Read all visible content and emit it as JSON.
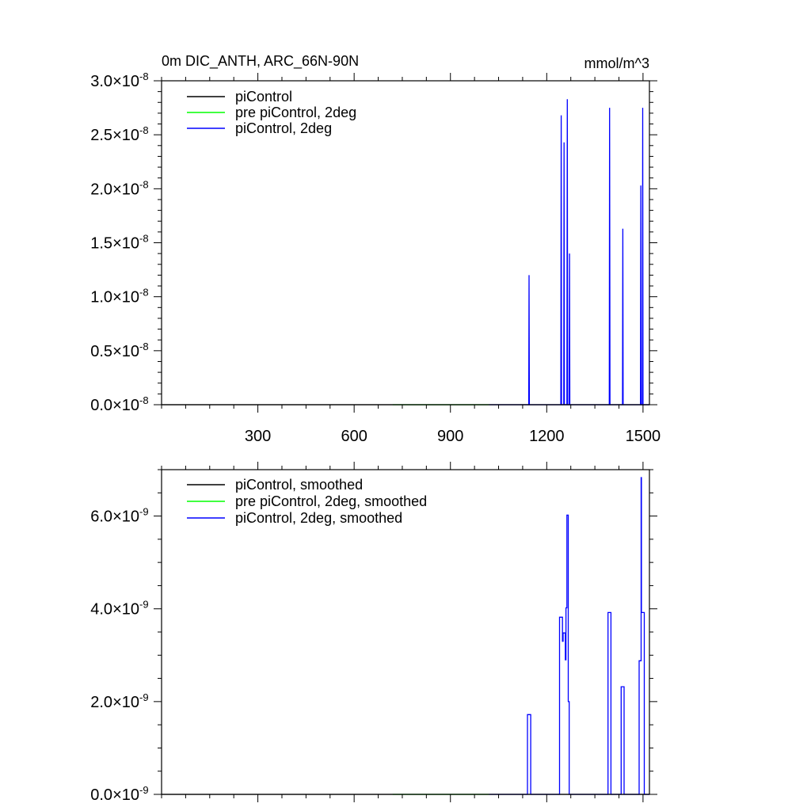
{
  "chart_data": [
    {
      "type": "line",
      "title": "0m DIC_ANTH, ARC_66N-90N",
      "units": "mmol/m^3",
      "xlim": [
        0,
        1520
      ],
      "ylim": [
        0,
        3e-08
      ],
      "x_ticks": [
        300,
        600,
        900,
        1200,
        1500
      ],
      "y_ticks": [
        {
          "value": 0,
          "mantissa": "0.0",
          "base": "×10",
          "exp": "-8"
        },
        {
          "value": 5e-09,
          "mantissa": "0.5",
          "base": "×10",
          "exp": "-8"
        },
        {
          "value": 1e-08,
          "mantissa": "1.0",
          "base": "×10",
          "exp": "-8"
        },
        {
          "value": 1.5e-08,
          "mantissa": "1.5",
          "base": "×10",
          "exp": "-8"
        },
        {
          "value": 2e-08,
          "mantissa": "2.0",
          "base": "×10",
          "exp": "-8"
        },
        {
          "value": 2.5e-08,
          "mantissa": "2.5",
          "base": "×10",
          "exp": "-8"
        },
        {
          "value": 3e-08,
          "mantissa": "3.0",
          "base": "×10",
          "exp": "-8"
        }
      ],
      "legend": [
        {
          "label": "piControl",
          "color": "#000000"
        },
        {
          "label": "pre piControl, 2deg",
          "color": "#00ff00"
        },
        {
          "label": "piControl, 2deg",
          "color": "#0000ff"
        }
      ],
      "series": [
        {
          "name": "piControl",
          "color": "#000000",
          "x": [
            0,
            1520
          ],
          "y": [
            0,
            0
          ]
        },
        {
          "name": "pre piControl, 2deg",
          "color": "#00ff00",
          "x": [
            720,
            1020
          ],
          "y": [
            0,
            0
          ]
        },
        {
          "name": "piControl, 2deg",
          "color": "#0000ff",
          "x": [
            1020,
            1144,
            1145,
            1146,
            1244,
            1245,
            1246,
            1253,
            1254,
            1255,
            1263,
            1264,
            1265,
            1270,
            1271,
            1272,
            1395,
            1396,
            1397,
            1436,
            1437,
            1438,
            1492,
            1493,
            1494,
            1498,
            1499,
            1500,
            1520
          ],
          "y": [
            0,
            0,
            1.2e-08,
            0,
            0,
            2.68e-08,
            0,
            0,
            2.43e-08,
            0,
            0,
            2.83e-08,
            0,
            0,
            1.4e-08,
            0,
            0,
            2.75e-08,
            0,
            0,
            1.63e-08,
            0,
            0,
            2.03e-08,
            0,
            0,
            2.75e-08,
            0,
            0
          ]
        }
      ]
    },
    {
      "type": "line",
      "xlim": [
        0,
        1520
      ],
      "ylim": [
        0,
        7e-09
      ],
      "y_ticks": [
        {
          "value": 0,
          "mantissa": "0.0",
          "base": "×10",
          "exp": "-9"
        },
        {
          "value": 2e-09,
          "mantissa": "2.0",
          "base": "×10",
          "exp": "-9"
        },
        {
          "value": 4e-09,
          "mantissa": "4.0",
          "base": "×10",
          "exp": "-9"
        },
        {
          "value": 6e-09,
          "mantissa": "6.0",
          "base": "×10",
          "exp": "-9"
        }
      ],
      "legend": [
        {
          "label": "piControl, smoothed",
          "color": "#000000"
        },
        {
          "label": "pre piControl, 2deg, smoothed",
          "color": "#00ff00"
        },
        {
          "label": "piControl, 2deg, smoothed",
          "color": "#0000ff"
        }
      ],
      "series": [
        {
          "name": "piControl, smoothed",
          "color": "#000000",
          "x": [
            0,
            1520
          ],
          "y": [
            0,
            0
          ]
        },
        {
          "name": "pre piControl, 2deg, smoothed",
          "color": "#00ff00",
          "x": [
            720,
            1020
          ],
          "y": [
            0,
            0
          ]
        },
        {
          "name": "piControl, 2deg, smoothed",
          "color": "#0000ff",
          "x": [
            1020,
            1140,
            1140,
            1150,
            1150,
            1240,
            1240,
            1249,
            1249,
            1251,
            1251,
            1258,
            1258,
            1260,
            1260,
            1263,
            1263,
            1267,
            1267,
            1270,
            1270,
            1275,
            1275,
            1391,
            1391,
            1400,
            1400,
            1432,
            1432,
            1441,
            1441,
            1488,
            1488,
            1494,
            1494,
            1495,
            1495,
            1504,
            1504,
            1520
          ],
          "y": [
            0,
            0,
            1.72e-09,
            1.72e-09,
            0,
            0,
            3.82e-09,
            3.82e-09,
            3.3e-09,
            3.3e-09,
            3.48e-09,
            3.48e-09,
            2.9e-09,
            2.9e-09,
            4.02e-09,
            4.02e-09,
            6.02e-09,
            6.02e-09,
            2e-09,
            2e-09,
            0,
            0,
            0,
            0,
            3.92e-09,
            3.92e-09,
            0,
            0,
            2.32e-09,
            2.32e-09,
            0,
            0,
            2.88e-09,
            2.88e-09,
            6.83e-09,
            6.83e-09,
            3.92e-09,
            3.92e-09,
            0,
            0
          ]
        }
      ]
    }
  ]
}
